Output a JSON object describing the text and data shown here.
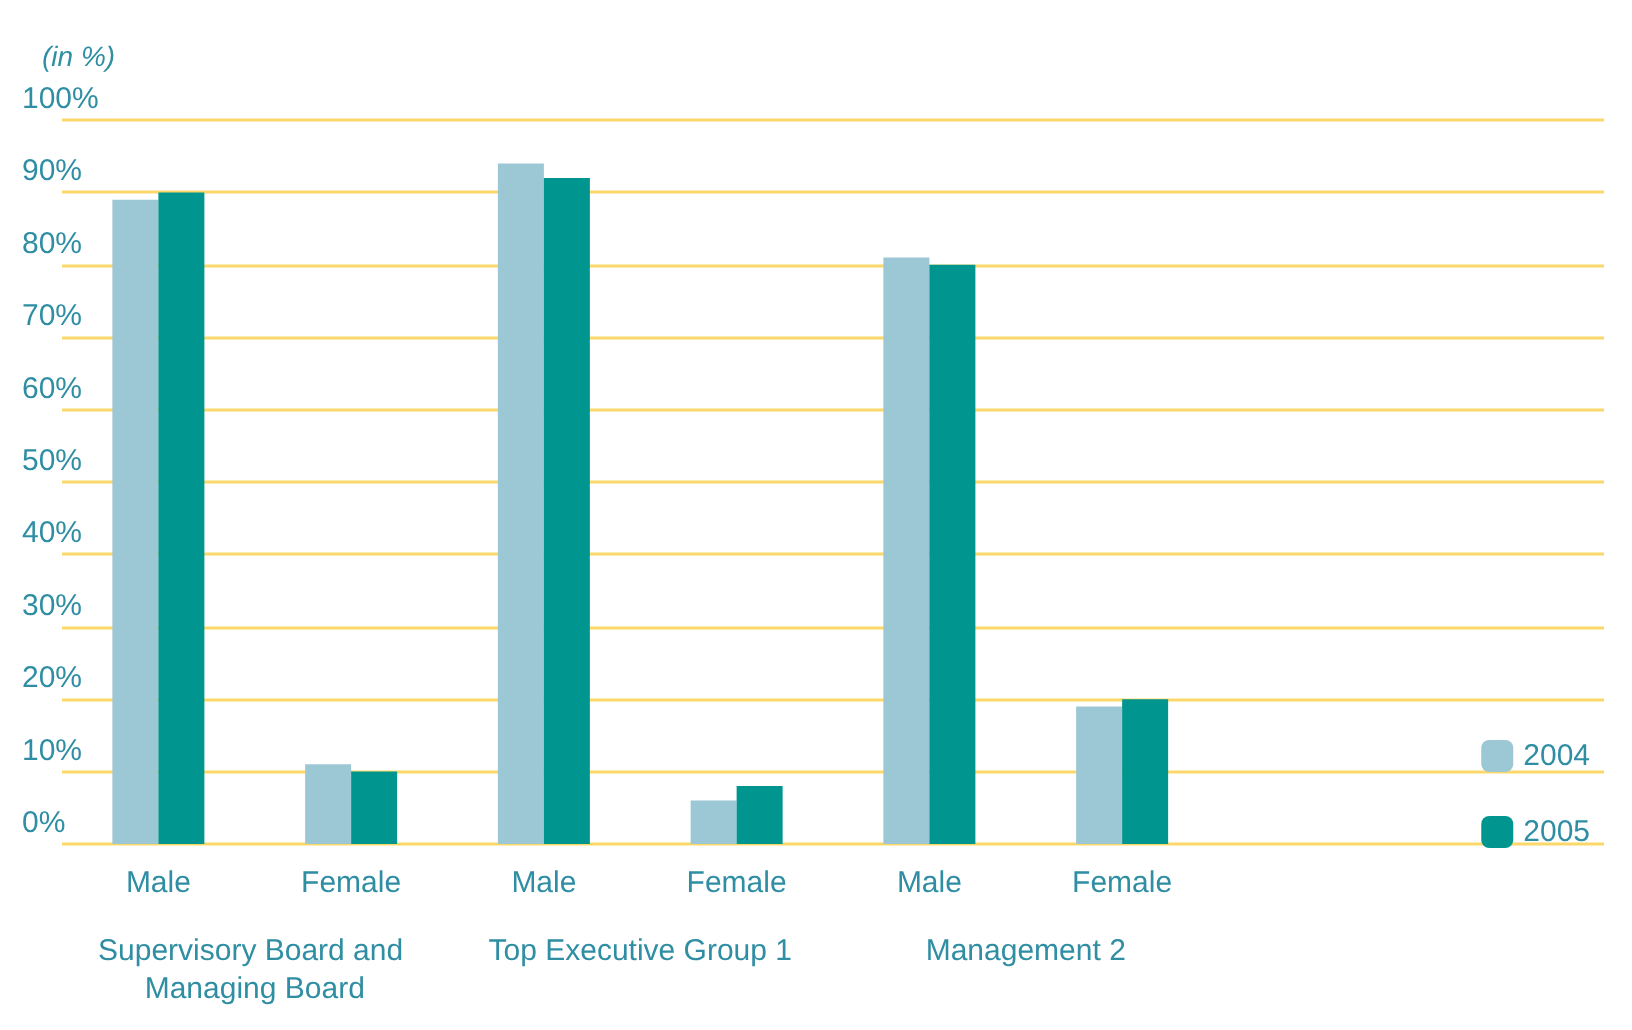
{
  "chart_data": {
    "type": "bar",
    "ylabel": "(in %)",
    "categories": [
      "Male",
      "Female",
      "Male",
      "Female",
      "Male",
      "Female"
    ],
    "series": [
      {
        "name": "2004",
        "color": "#9cc7d4",
        "values": [
          89,
          11,
          94,
          6,
          81,
          19
        ]
      },
      {
        "name": "2005",
        "color": "#00968f",
        "values": [
          90,
          10,
          92,
          8,
          80,
          20
        ]
      }
    ],
    "ylim": [
      0,
      100
    ],
    "yticks": [
      {
        "value": 0,
        "label": "0%"
      },
      {
        "value": 10,
        "label": "10%"
      },
      {
        "value": 20,
        "label": "20%"
      },
      {
        "value": 30,
        "label": "30%"
      },
      {
        "value": 40,
        "label": "40%"
      },
      {
        "value": 50,
        "label": "50%"
      },
      {
        "value": 60,
        "label": "60%"
      },
      {
        "value": 70,
        "label": "70%"
      },
      {
        "value": 80,
        "label": "80%"
      },
      {
        "value": 90,
        "label": "90%"
      },
      {
        "value": 100,
        "label": "100%"
      }
    ],
    "annotations": [
      "Supervisory Board and Managing Board",
      "Top Executive Group 1",
      "Management 2"
    ],
    "grid": true,
    "legend": "bottom right"
  }
}
